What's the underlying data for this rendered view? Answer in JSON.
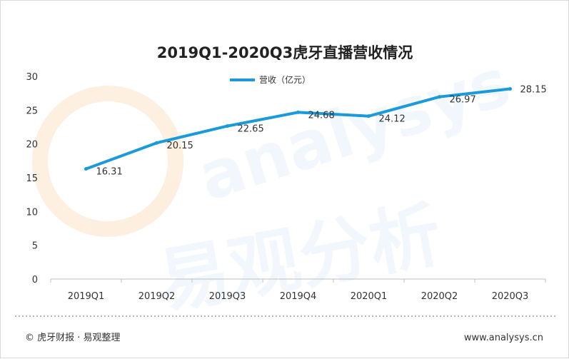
{
  "chart_data": {
    "type": "line",
    "title": "2019Q1-2020Q3虎牙直播营收情况",
    "categories": [
      "2019Q1",
      "2019Q2",
      "2019Q3",
      "2019Q4",
      "2020Q1",
      "2020Q2",
      "2020Q3"
    ],
    "series": [
      {
        "name": "营收（亿元）",
        "values": [
          16.31,
          20.15,
          22.65,
          24.68,
          24.12,
          26.97,
          28.15
        ],
        "labels": [
          "16.31",
          "20.15",
          "22.65",
          "24.68",
          "24.12",
          "26.97",
          "28.15"
        ],
        "color": "#1a9ad9"
      }
    ],
    "ylim": [
      0,
      30
    ],
    "yticks": [
      0,
      5,
      10,
      15,
      20,
      25,
      30
    ],
    "grid": false,
    "legend_position": "top-left"
  },
  "footer": {
    "source": "© 虎牙财报 · 易观整理",
    "website": "www.analysys.cn"
  },
  "watermark": {
    "latin": "analysys",
    "chinese": "易观分析",
    "color": "#e8f3fb"
  }
}
